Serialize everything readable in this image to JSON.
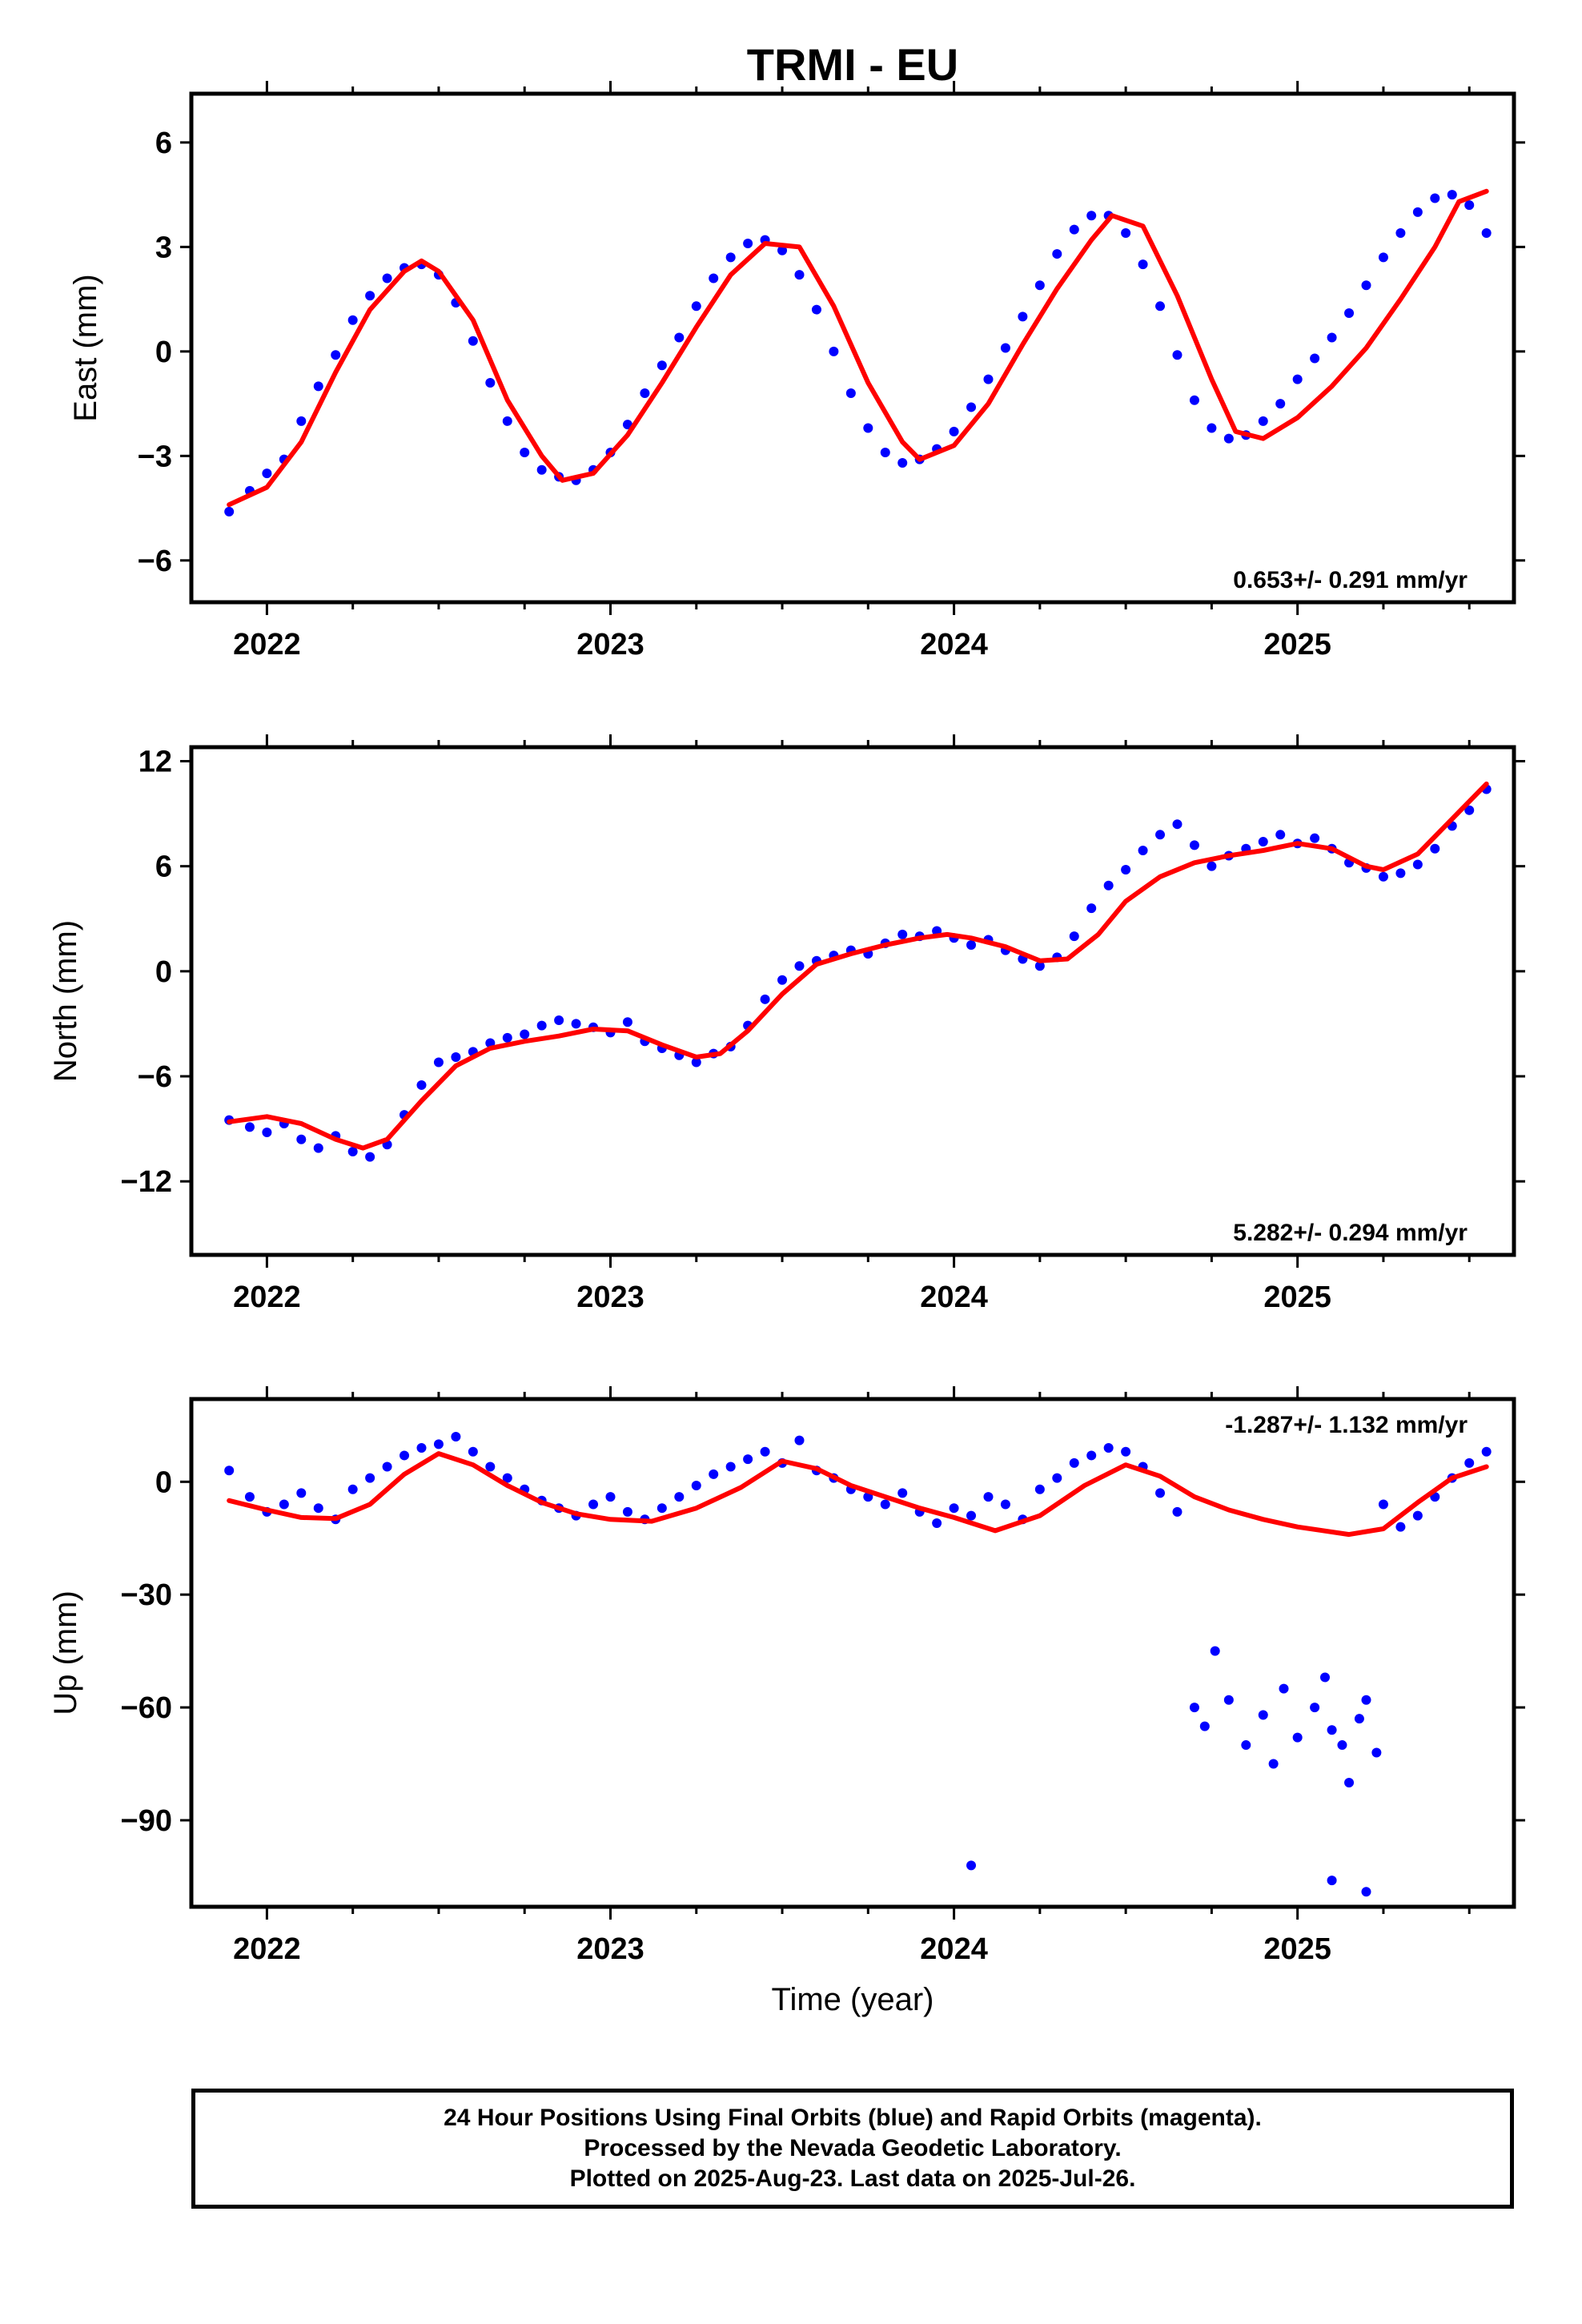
{
  "title": "TRMI - EU",
  "colors": {
    "final_orbits": "#0000ff",
    "model": "#ff0000",
    "frame": "#000000"
  },
  "chart_data": [
    {
      "type": "scatter",
      "ylabel": "East (mm)",
      "xlim": [
        2021.78,
        2025.63
      ],
      "ylim": [
        -7.2,
        7.4
      ],
      "yticks": [
        6,
        3,
        0,
        -3,
        -6
      ],
      "ytick_labels": [
        "6",
        "3",
        "0",
        "−3",
        "−6"
      ],
      "xticks": [
        2022,
        2023,
        2024,
        2025
      ],
      "xtick_labels": [
        "2022",
        "2023",
        "2024",
        "2025"
      ],
      "rate_label": "0.653+/- 0.291 mm/yr",
      "rate_position": "bottom-right",
      "series": [
        {
          "type": "scatter",
          "x": [
            2021.89,
            2021.95,
            2022.0,
            2022.05,
            2022.1,
            2022.15,
            2022.2,
            2022.25,
            2022.3,
            2022.35,
            2022.4,
            2022.45,
            2022.5,
            2022.55,
            2022.6,
            2022.65,
            2022.7,
            2022.75,
            2022.8,
            2022.85,
            2022.9,
            2022.95,
            2023.0,
            2023.05,
            2023.1,
            2023.15,
            2023.2,
            2023.25,
            2023.3,
            2023.35,
            2023.4,
            2023.45,
            2023.5,
            2023.55,
            2023.6,
            2023.65,
            2023.7,
            2023.75,
            2023.8,
            2023.85,
            2023.9,
            2023.95,
            2024.0,
            2024.05,
            2024.1,
            2024.15,
            2024.2,
            2024.25,
            2024.3,
            2024.35,
            2024.4,
            2024.45,
            2024.5,
            2024.55,
            2024.6,
            2024.65,
            2024.7,
            2024.75,
            2024.8,
            2024.85,
            2024.9,
            2024.95,
            2025.0,
            2025.05,
            2025.1,
            2025.15,
            2025.2,
            2025.25,
            2025.3,
            2025.35,
            2025.4,
            2025.45,
            2025.5,
            2025.55
          ],
          "y": [
            -4.6,
            -4.0,
            -3.5,
            -3.1,
            -2.0,
            -1.0,
            -0.1,
            0.9,
            1.6,
            2.1,
            2.4,
            2.5,
            2.2,
            1.4,
            0.3,
            -0.9,
            -2.0,
            -2.9,
            -3.4,
            -3.6,
            -3.7,
            -3.4,
            -2.9,
            -2.1,
            -1.2,
            -0.4,
            0.4,
            1.3,
            2.1,
            2.7,
            3.1,
            3.2,
            2.9,
            2.2,
            1.2,
            0.0,
            -1.2,
            -2.2,
            -2.9,
            -3.2,
            -3.1,
            -2.8,
            -2.3,
            -1.6,
            -0.8,
            0.1,
            1.0,
            1.9,
            2.8,
            3.5,
            3.9,
            3.9,
            3.4,
            2.5,
            1.3,
            -0.1,
            -1.4,
            -2.2,
            -2.5,
            -2.4,
            -2.0,
            -1.5,
            -0.8,
            -0.2,
            0.4,
            1.1,
            1.9,
            2.7,
            3.4,
            4.0,
            4.4,
            4.5,
            4.2,
            3.4
          ]
        },
        {
          "type": "line",
          "x": [
            2021.89,
            2022.0,
            2022.1,
            2022.2,
            2022.3,
            2022.4,
            2022.45,
            2022.5,
            2022.6,
            2022.7,
            2022.8,
            2022.86,
            2022.95,
            2023.05,
            2023.15,
            2023.25,
            2023.35,
            2023.45,
            2023.55,
            2023.65,
            2023.75,
            2023.85,
            2023.9,
            2024.0,
            2024.1,
            2024.2,
            2024.3,
            2024.4,
            2024.46,
            2024.55,
            2024.65,
            2024.75,
            2024.82,
            2024.9,
            2025.0,
            2025.1,
            2025.2,
            2025.3,
            2025.4,
            2025.47,
            2025.55
          ],
          "y": [
            -4.4,
            -3.9,
            -2.6,
            -0.6,
            1.2,
            2.3,
            2.6,
            2.3,
            0.9,
            -1.4,
            -3.0,
            -3.7,
            -3.5,
            -2.4,
            -0.9,
            0.7,
            2.2,
            3.1,
            3.0,
            1.3,
            -0.9,
            -2.6,
            -3.1,
            -2.7,
            -1.5,
            0.2,
            1.8,
            3.2,
            3.9,
            3.6,
            1.6,
            -0.8,
            -2.3,
            -2.5,
            -1.9,
            -1.0,
            0.1,
            1.5,
            3.0,
            4.3,
            4.6
          ]
        }
      ]
    },
    {
      "type": "scatter",
      "ylabel": "North (mm)",
      "xlim": [
        2021.78,
        2025.63
      ],
      "ylim": [
        -16.2,
        12.8
      ],
      "yticks": [
        12,
        6,
        0,
        -6,
        -12
      ],
      "ytick_labels": [
        "12",
        "6",
        "0",
        "−6",
        "−12"
      ],
      "xticks": [
        2022,
        2023,
        2024,
        2025
      ],
      "xtick_labels": [
        "2022",
        "2023",
        "2024",
        "2025"
      ],
      "rate_label": "5.282+/- 0.294 mm/yr",
      "rate_position": "bottom-right",
      "series": [
        {
          "type": "scatter",
          "x": [
            2021.89,
            2021.95,
            2022.0,
            2022.05,
            2022.1,
            2022.15,
            2022.2,
            2022.25,
            2022.3,
            2022.35,
            2022.4,
            2022.45,
            2022.5,
            2022.55,
            2022.6,
            2022.65,
            2022.7,
            2022.75,
            2022.8,
            2022.85,
            2022.9,
            2022.95,
            2023.0,
            2023.05,
            2023.1,
            2023.15,
            2023.2,
            2023.25,
            2023.3,
            2023.35,
            2023.4,
            2023.45,
            2023.5,
            2023.55,
            2023.6,
            2023.65,
            2023.7,
            2023.75,
            2023.8,
            2023.85,
            2023.9,
            2023.95,
            2024.0,
            2024.05,
            2024.1,
            2024.15,
            2024.2,
            2024.25,
            2024.3,
            2024.35,
            2024.4,
            2024.45,
            2024.5,
            2024.55,
            2024.6,
            2024.65,
            2024.7,
            2024.75,
            2024.8,
            2024.85,
            2024.9,
            2024.95,
            2025.0,
            2025.05,
            2025.1,
            2025.15,
            2025.2,
            2025.25,
            2025.3,
            2025.35,
            2025.4,
            2025.45,
            2025.5,
            2025.55
          ],
          "y": [
            -8.5,
            -8.9,
            -9.2,
            -8.7,
            -9.6,
            -10.1,
            -9.4,
            -10.3,
            -10.6,
            -9.9,
            -8.2,
            -6.5,
            -5.2,
            -4.9,
            -4.6,
            -4.1,
            -3.8,
            -3.6,
            -3.1,
            -2.8,
            -3.0,
            -3.2,
            -3.5,
            -2.9,
            -4.0,
            -4.4,
            -4.8,
            -5.2,
            -4.7,
            -4.3,
            -3.1,
            -1.6,
            -0.5,
            0.3,
            0.6,
            0.9,
            1.2,
            1.0,
            1.6,
            2.1,
            2.0,
            2.3,
            1.9,
            1.5,
            1.8,
            1.2,
            0.7,
            0.3,
            0.8,
            2.0,
            3.6,
            4.9,
            5.8,
            6.9,
            7.8,
            8.4,
            7.2,
            6.0,
            6.6,
            7.0,
            7.4,
            7.8,
            7.3,
            7.6,
            7.0,
            6.2,
            5.9,
            5.4,
            5.6,
            6.1,
            7.0,
            8.3,
            9.2,
            10.4
          ]
        },
        {
          "type": "line",
          "x": [
            2021.89,
            2022.0,
            2022.1,
            2022.2,
            2022.28,
            2022.35,
            2022.45,
            2022.55,
            2022.65,
            2022.75,
            2022.85,
            2022.95,
            2023.05,
            2023.15,
            2023.25,
            2023.32,
            2023.4,
            2023.5,
            2023.6,
            2023.7,
            2023.8,
            2023.9,
            2023.98,
            2024.05,
            2024.15,
            2024.25,
            2024.33,
            2024.42,
            2024.5,
            2024.6,
            2024.7,
            2024.8,
            2024.9,
            2025.0,
            2025.1,
            2025.2,
            2025.25,
            2025.35,
            2025.45,
            2025.55
          ],
          "y": [
            -8.6,
            -8.3,
            -8.7,
            -9.6,
            -10.1,
            -9.6,
            -7.4,
            -5.4,
            -4.4,
            -4.0,
            -3.7,
            -3.3,
            -3.4,
            -4.2,
            -4.9,
            -4.7,
            -3.4,
            -1.3,
            0.4,
            1.0,
            1.5,
            1.9,
            2.1,
            1.9,
            1.4,
            0.6,
            0.7,
            2.1,
            4.0,
            5.4,
            6.2,
            6.6,
            6.9,
            7.3,
            7.0,
            6.0,
            5.8,
            6.7,
            8.7,
            10.7
          ]
        }
      ]
    },
    {
      "type": "scatter",
      "ylabel": "Up (mm)",
      "xlim": [
        2021.78,
        2025.63
      ],
      "ylim": [
        -113,
        22
      ],
      "yticks": [
        0,
        -30,
        -60,
        -90
      ],
      "ytick_labels": [
        "0",
        "−30",
        "−60",
        "−90"
      ],
      "xticks": [
        2022,
        2023,
        2024,
        2025
      ],
      "xtick_labels": [
        "2022",
        "2023",
        "2024",
        "2025"
      ],
      "xlabel": "Time (year)",
      "rate_label": "-1.287+/- 1.132 mm/yr",
      "rate_position": "top-right",
      "series": [
        {
          "type": "scatter",
          "x": [
            2021.89,
            2021.95,
            2022.0,
            2022.05,
            2022.1,
            2022.15,
            2022.2,
            2022.25,
            2022.3,
            2022.35,
            2022.4,
            2022.45,
            2022.5,
            2022.55,
            2022.6,
            2022.65,
            2022.7,
            2022.75,
            2022.8,
            2022.85,
            2022.9,
            2022.95,
            2023.0,
            2023.05,
            2023.1,
            2023.15,
            2023.2,
            2023.25,
            2023.3,
            2023.35,
            2023.4,
            2023.45,
            2023.5,
            2023.55,
            2023.6,
            2023.65,
            2023.7,
            2023.75,
            2023.8,
            2023.85,
            2023.9,
            2023.95,
            2024.0,
            2024.05,
            2024.1,
            2024.15,
            2024.2,
            2024.25,
            2024.3,
            2024.35,
            2024.4,
            2024.45,
            2024.5,
            2024.55,
            2024.6,
            2024.65,
            2024.7,
            2024.73,
            2024.76,
            2024.8,
            2024.85,
            2024.9,
            2024.93,
            2024.96,
            2025.0,
            2025.05,
            2025.08,
            2025.1,
            2025.13,
            2025.15,
            2025.18,
            2025.2,
            2025.23,
            2025.25,
            2025.3,
            2025.35,
            2025.4,
            2025.45,
            2025.5,
            2025.55,
            2024.05,
            2025.1,
            2025.2
          ],
          "y": [
            3,
            -4,
            -8,
            -6,
            -3,
            -7,
            -10,
            -2,
            1,
            4,
            7,
            9,
            10,
            12,
            8,
            4,
            1,
            -2,
            -5,
            -7,
            -9,
            -6,
            -4,
            -8,
            -10,
            -7,
            -4,
            -1,
            2,
            4,
            6,
            8,
            5,
            11,
            3,
            1,
            -2,
            -4,
            -6,
            -3,
            -8,
            -11,
            -7,
            -9,
            -4,
            -6,
            -10,
            -2,
            1,
            5,
            7,
            9,
            8,
            4,
            -3,
            -8,
            -60,
            -65,
            -45,
            -58,
            -70,
            -62,
            -75,
            -55,
            -68,
            -60,
            -52,
            -66,
            -70,
            -80,
            -63,
            -58,
            -72,
            -6,
            -12,
            -9,
            -4,
            1,
            5,
            8,
            -102,
            -106,
            -109
          ]
        },
        {
          "type": "line",
          "x": [
            2021.89,
            2022.0,
            2022.1,
            2022.2,
            2022.3,
            2022.4,
            2022.5,
            2022.6,
            2022.7,
            2022.8,
            2022.9,
            2023.0,
            2023.12,
            2023.25,
            2023.38,
            2023.5,
            2023.6,
            2023.7,
            2023.8,
            2023.9,
            2024.0,
            2024.12,
            2024.25,
            2024.38,
            2024.5,
            2024.6,
            2024.7,
            2024.8,
            2024.9,
            2025.0,
            2025.15,
            2025.25,
            2025.35,
            2025.45,
            2025.55
          ],
          "y": [
            -5,
            -7.5,
            -9.5,
            -9.8,
            -6,
            2,
            7.5,
            4.5,
            -1,
            -5.5,
            -8.5,
            -10,
            -10.5,
            -7,
            -1.5,
            5.5,
            3.5,
            -1,
            -4,
            -7,
            -9.5,
            -13,
            -9,
            -1,
            4.5,
            1.5,
            -4,
            -7.5,
            -10,
            -12,
            -14,
            -12.5,
            -5.5,
            1,
            4
          ]
        }
      ]
    }
  ],
  "footer": {
    "line1": "24 Hour Positions Using Final Orbits (blue) and Rapid Orbits (magenta).",
    "line2": "Processed by the Nevada Geodetic Laboratory.",
    "line3": "Plotted on 2025-Aug-23. Last data on 2025-Jul-26."
  }
}
